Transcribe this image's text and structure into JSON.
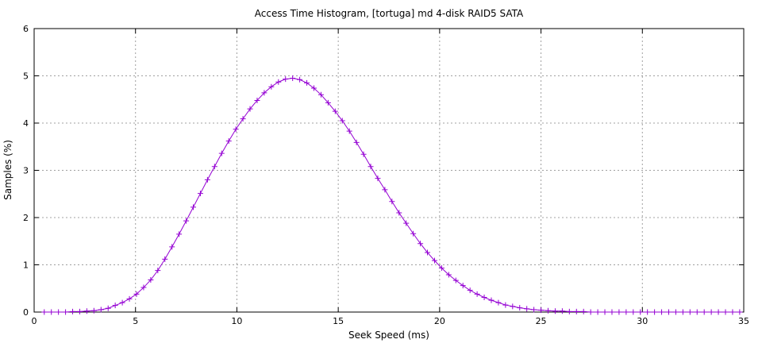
{
  "chart_data": {
    "type": "line",
    "title": "Access Time Histogram, [tortuga] md 4-disk RAID5 SATA",
    "xlabel": "Seek Speed (ms)",
    "ylabel": "Samples (%)",
    "xlim": [
      0,
      35
    ],
    "ylim": [
      0,
      6
    ],
    "xticks": [
      0,
      5,
      10,
      15,
      20,
      25,
      30,
      35
    ],
    "yticks": [
      0,
      1,
      2,
      3,
      4,
      5,
      6
    ],
    "grid": true,
    "grid_style": "dotted",
    "marker": "plus",
    "colors": {
      "series": "#9400d3",
      "grid": "#a0a0a0",
      "axis": "#000000"
    },
    "series": [
      {
        "x": [
          0.5,
          0.85,
          1.2,
          1.55,
          1.9,
          2.25,
          2.6,
          2.95,
          3.3,
          3.65,
          4.0,
          4.35,
          4.7,
          5.05,
          5.4,
          5.75,
          6.1,
          6.45,
          6.8,
          7.15,
          7.5,
          7.85,
          8.2,
          8.55,
          8.9,
          9.25,
          9.6,
          9.95,
          10.3,
          10.65,
          11.0,
          11.35,
          11.7,
          12.05,
          12.4,
          12.75,
          13.1,
          13.45,
          13.8,
          14.15,
          14.5,
          14.85,
          15.2,
          15.55,
          15.9,
          16.25,
          16.6,
          16.95,
          17.3,
          17.65,
          18.0,
          18.35,
          18.7,
          19.05,
          19.4,
          19.75,
          20.1,
          20.45,
          20.8,
          21.15,
          21.5,
          21.85,
          22.2,
          22.55,
          22.9,
          23.25,
          23.6,
          23.95,
          24.3,
          24.65,
          25.0,
          25.35,
          25.7,
          26.05,
          26.4,
          26.75,
          27.1,
          27.45,
          27.8,
          28.15,
          28.5,
          28.85,
          29.2,
          29.55,
          29.9,
          30.25,
          30.6,
          30.95,
          31.3,
          31.65,
          32.0,
          32.35,
          32.7,
          33.05,
          33.4,
          33.75,
          34.1,
          34.45,
          34.8
        ],
        "values": [
          0.0,
          0.0,
          0.0,
          0.0,
          0.01,
          0.01,
          0.02,
          0.03,
          0.05,
          0.08,
          0.14,
          0.2,
          0.28,
          0.38,
          0.52,
          0.68,
          0.88,
          1.12,
          1.38,
          1.65,
          1.93,
          2.22,
          2.51,
          2.8,
          3.08,
          3.36,
          3.62,
          3.87,
          4.09,
          4.3,
          4.48,
          4.64,
          4.77,
          4.87,
          4.93,
          4.95,
          4.92,
          4.85,
          4.74,
          4.6,
          4.43,
          4.25,
          4.05,
          3.83,
          3.59,
          3.34,
          3.08,
          2.83,
          2.59,
          2.34,
          2.1,
          1.88,
          1.66,
          1.45,
          1.26,
          1.09,
          0.93,
          0.79,
          0.67,
          0.56,
          0.46,
          0.38,
          0.31,
          0.25,
          0.2,
          0.15,
          0.12,
          0.09,
          0.07,
          0.05,
          0.04,
          0.03,
          0.02,
          0.02,
          0.01,
          0.01,
          0.01,
          0.0,
          0.0,
          0.0,
          0.0,
          0.0,
          0.0,
          0.0,
          0.0,
          0.0,
          0.0,
          0.0,
          0.0,
          0.0,
          0.0,
          0.0,
          0.0,
          0.0,
          0.0,
          0.0,
          0.0,
          0.0,
          0.0
        ]
      }
    ]
  }
}
